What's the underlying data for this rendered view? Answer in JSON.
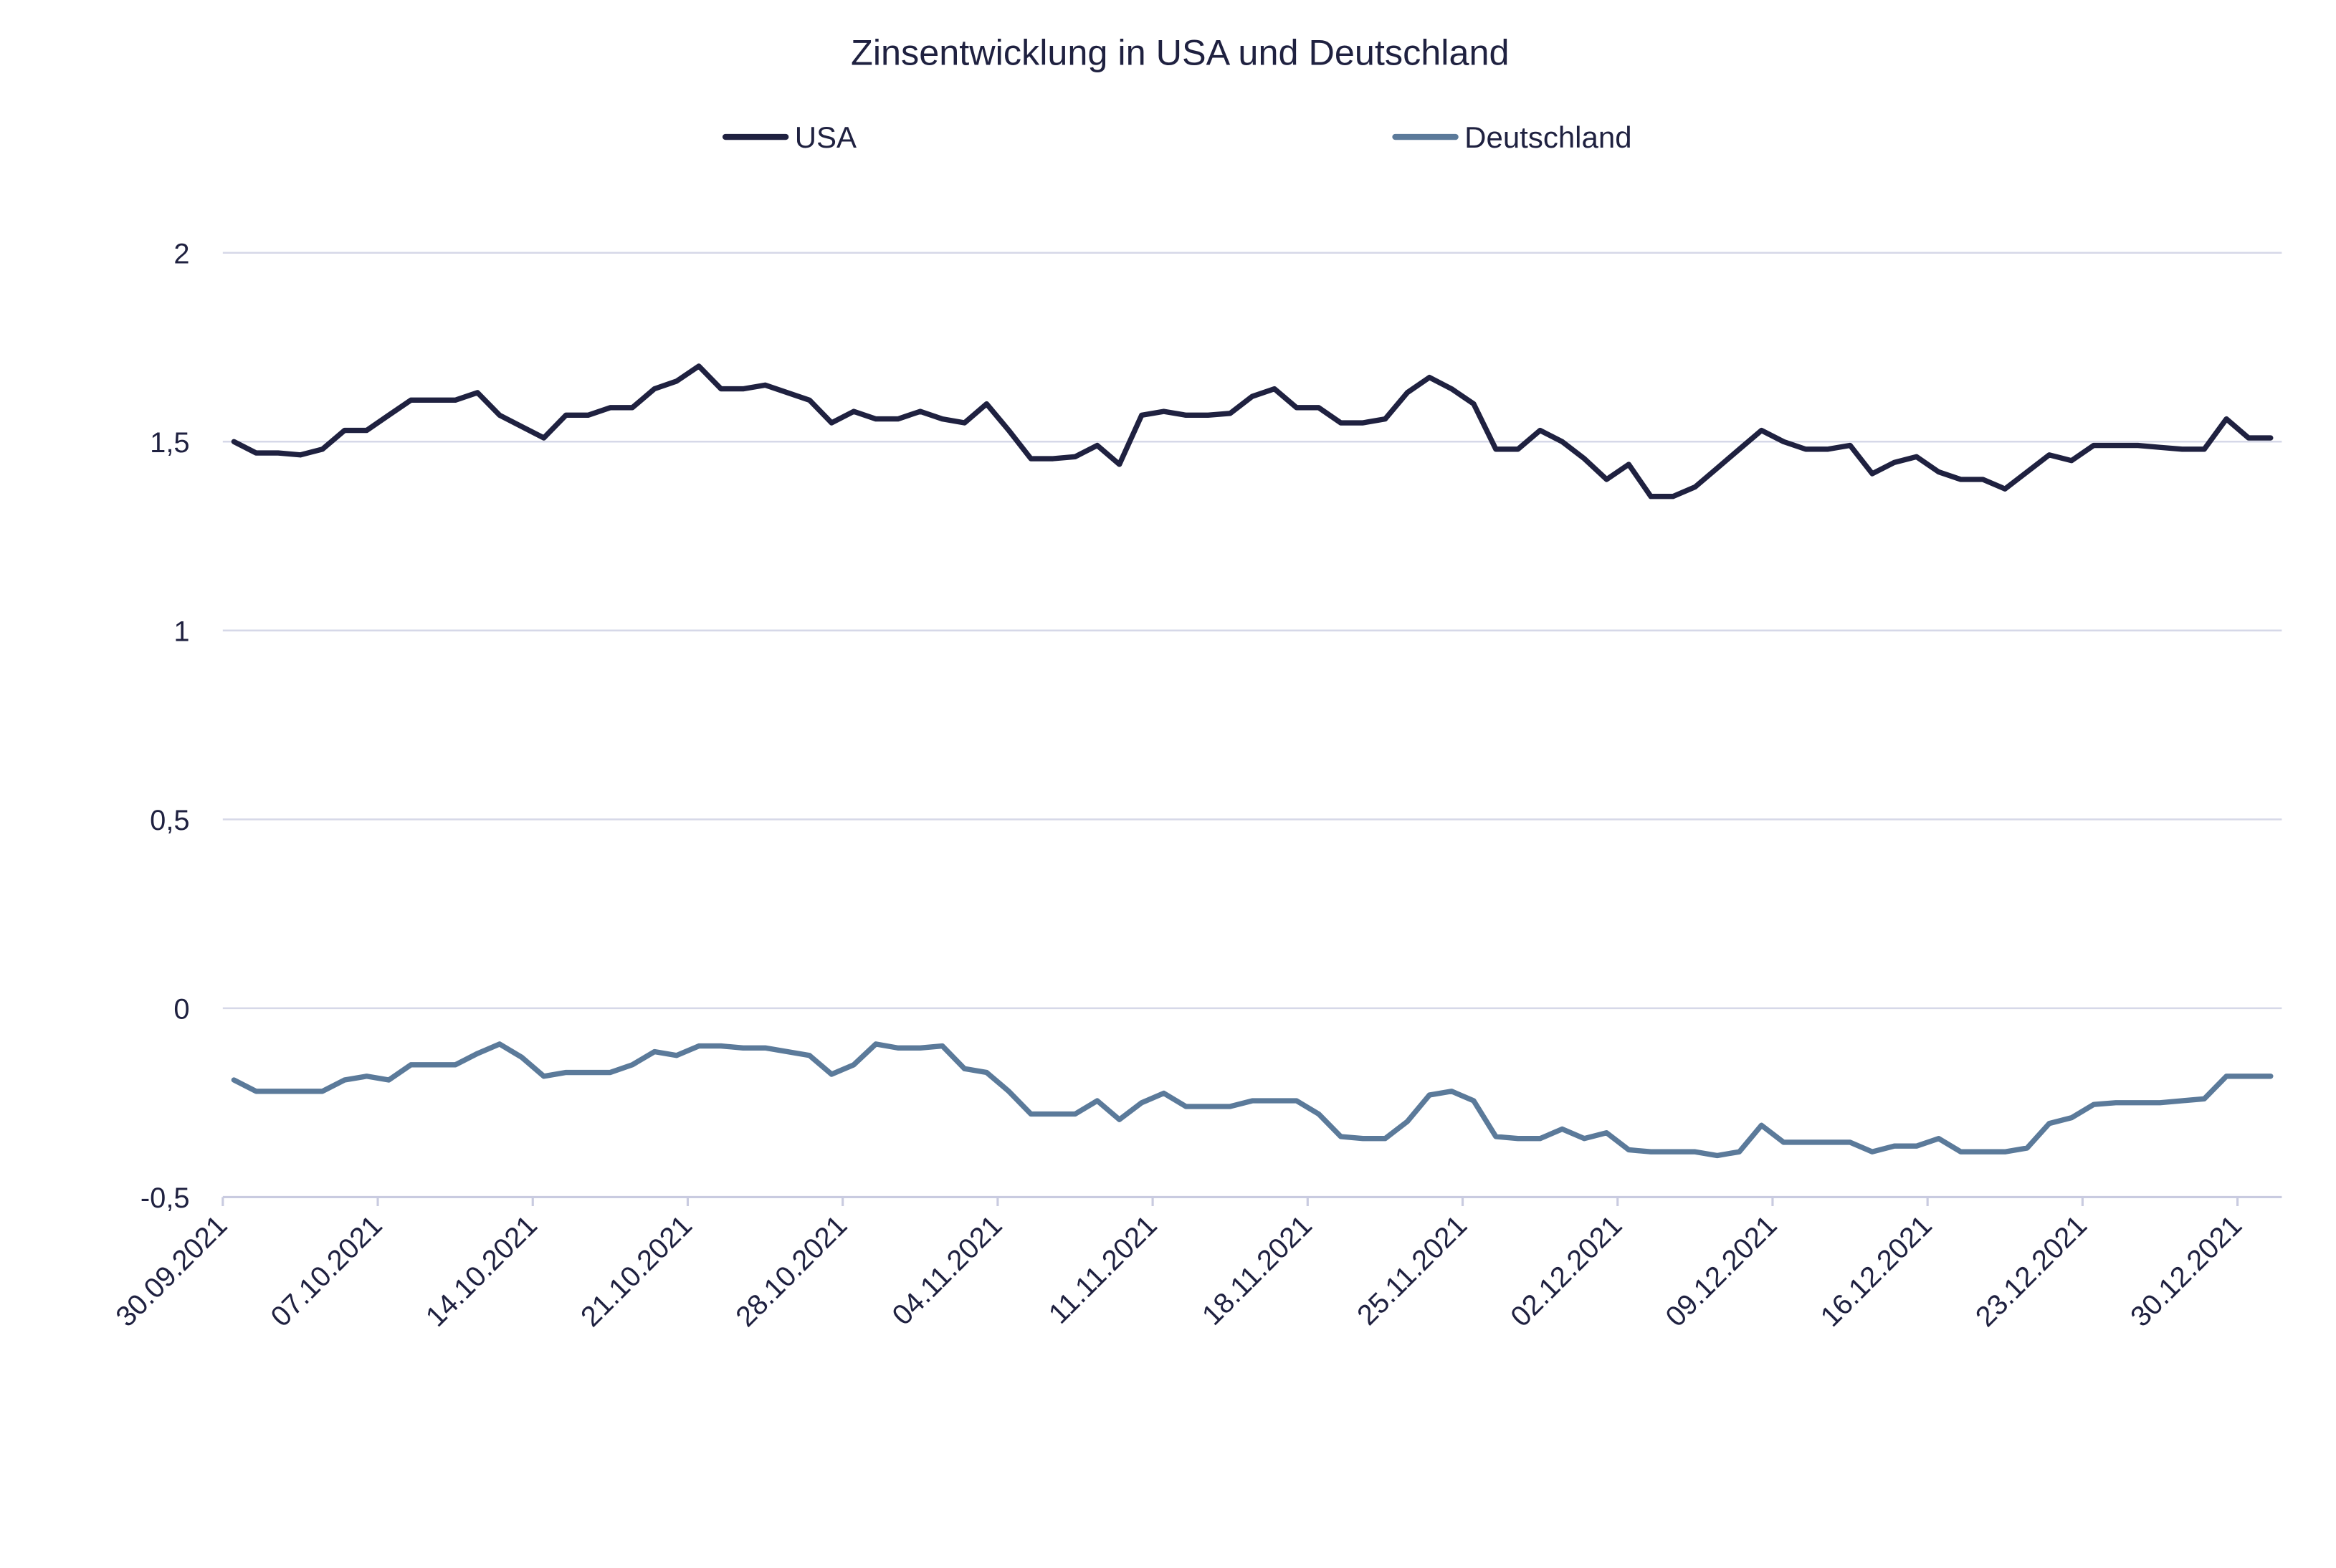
{
  "chart_data": {
    "type": "line",
    "title": "Zinsentwicklung in USA und Deutschland",
    "xlabel": "",
    "ylabel": "",
    "ylim": [
      -0.5,
      2
    ],
    "yticks": [
      "2",
      "1,5",
      "1",
      "0,5",
      "0",
      "-0,5"
    ],
    "ytick_values": [
      2,
      1.5,
      1,
      0.5,
      0,
      -0.5
    ],
    "xtick_labels": [
      "30.09.2021",
      "07.10.2021",
      "14.10.2021",
      "21.10.2021",
      "28.10.2021",
      "04.11.2021",
      "11.11.2021",
      "18.11.2021",
      "25.11.2021",
      "02.12.2021",
      "09.12.2021",
      "16.12.2021",
      "23.12.2021",
      "30.12.2021"
    ],
    "grid": true,
    "legend_position": "top",
    "x": [
      "30.09.2021",
      "01.10.2021",
      "02.10.2021",
      "03.10.2021",
      "04.10.2021",
      "05.10.2021",
      "06.10.2021",
      "07.10.2021",
      "08.10.2021",
      "09.10.2021",
      "10.10.2021",
      "11.10.2021",
      "12.10.2021",
      "13.10.2021",
      "14.10.2021",
      "15.10.2021",
      "16.10.2021",
      "17.10.2021",
      "18.10.2021",
      "19.10.2021",
      "20.10.2021",
      "21.10.2021",
      "22.10.2021",
      "23.10.2021",
      "24.10.2021",
      "25.10.2021",
      "26.10.2021",
      "27.10.2021",
      "28.10.2021",
      "29.10.2021",
      "30.10.2021",
      "31.10.2021",
      "01.11.2021",
      "02.11.2021",
      "03.11.2021",
      "04.11.2021",
      "05.11.2021",
      "06.11.2021",
      "07.11.2021",
      "08.11.2021",
      "09.11.2021",
      "10.11.2021",
      "11.11.2021",
      "12.11.2021",
      "13.11.2021",
      "14.11.2021",
      "15.11.2021",
      "16.11.2021",
      "17.11.2021",
      "18.11.2021",
      "19.11.2021",
      "20.11.2021",
      "21.11.2021",
      "22.11.2021",
      "23.11.2021",
      "24.11.2021",
      "25.11.2021",
      "26.11.2021",
      "27.11.2021",
      "28.11.2021",
      "29.11.2021",
      "30.11.2021",
      "01.12.2021",
      "02.12.2021",
      "03.12.2021",
      "04.12.2021",
      "05.12.2021",
      "06.12.2021",
      "07.12.2021",
      "08.12.2021",
      "09.12.2021",
      "10.12.2021",
      "11.12.2021",
      "12.12.2021",
      "13.12.2021",
      "14.12.2021",
      "15.12.2021",
      "16.12.2021",
      "17.12.2021",
      "18.12.2021",
      "19.12.2021",
      "20.12.2021",
      "21.12.2021",
      "22.12.2021",
      "23.12.2021",
      "24.12.2021",
      "25.12.2021",
      "26.12.2021",
      "27.12.2021",
      "28.12.2021",
      "29.12.2021",
      "30.12.2021",
      "31.12.2021"
    ],
    "series": [
      {
        "name": "USA",
        "color": "#1f2140",
        "values": [
          1.5,
          1.47,
          1.47,
          1.465,
          1.48,
          1.53,
          1.53,
          1.57,
          1.61,
          1.61,
          1.61,
          1.63,
          1.57,
          1.54,
          1.51,
          1.57,
          1.57,
          1.59,
          1.59,
          1.64,
          1.66,
          1.7,
          1.64,
          1.64,
          1.65,
          1.63,
          1.61,
          1.55,
          1.58,
          1.56,
          1.56,
          1.58,
          1.56,
          1.55,
          1.6,
          1.53,
          1.455,
          1.455,
          1.46,
          1.49,
          1.44,
          1.57,
          1.58,
          1.57,
          1.57,
          1.575,
          1.62,
          1.64,
          1.59,
          1.59,
          1.55,
          1.55,
          1.56,
          1.63,
          1.67,
          1.64,
          1.6,
          1.48,
          1.48,
          1.53,
          1.5,
          1.455,
          1.4,
          1.44,
          1.355,
          1.355,
          1.38,
          1.43,
          1.48,
          1.53,
          1.5,
          1.48,
          1.48,
          1.49,
          1.415,
          1.445,
          1.46,
          1.42,
          1.4,
          1.4,
          1.375,
          1.42,
          1.465,
          1.45,
          1.49,
          1.49,
          1.49,
          1.485,
          1.48,
          1.48,
          1.56,
          1.51,
          1.51
        ]
      },
      {
        "name": "Deutschland",
        "color": "#5b7a9a",
        "values": [
          -0.19,
          -0.22,
          -0.22,
          -0.22,
          -0.22,
          -0.19,
          -0.18,
          -0.19,
          -0.15,
          -0.15,
          -0.15,
          -0.12,
          -0.095,
          -0.13,
          -0.18,
          -0.17,
          -0.17,
          -0.17,
          -0.15,
          -0.115,
          -0.125,
          -0.1,
          -0.1,
          -0.105,
          -0.105,
          -0.115,
          -0.125,
          -0.175,
          -0.15,
          -0.095,
          -0.105,
          -0.105,
          -0.1,
          -0.16,
          -0.17,
          -0.22,
          -0.28,
          -0.28,
          -0.28,
          -0.245,
          -0.295,
          -0.25,
          -0.225,
          -0.26,
          -0.26,
          -0.26,
          -0.245,
          -0.245,
          -0.245,
          -0.28,
          -0.34,
          -0.345,
          -0.345,
          -0.3,
          -0.23,
          -0.22,
          -0.245,
          -0.34,
          -0.345,
          -0.345,
          -0.32,
          -0.345,
          -0.33,
          -0.375,
          -0.38,
          -0.38,
          -0.38,
          -0.39,
          -0.38,
          -0.31,
          -0.355,
          -0.355,
          -0.355,
          -0.355,
          -0.38,
          -0.365,
          -0.365,
          -0.345,
          -0.38,
          -0.38,
          -0.38,
          -0.37,
          -0.305,
          -0.29,
          -0.255,
          -0.25,
          -0.25,
          -0.25,
          -0.245,
          -0.24,
          -0.18,
          -0.18,
          -0.18
        ]
      }
    ]
  }
}
